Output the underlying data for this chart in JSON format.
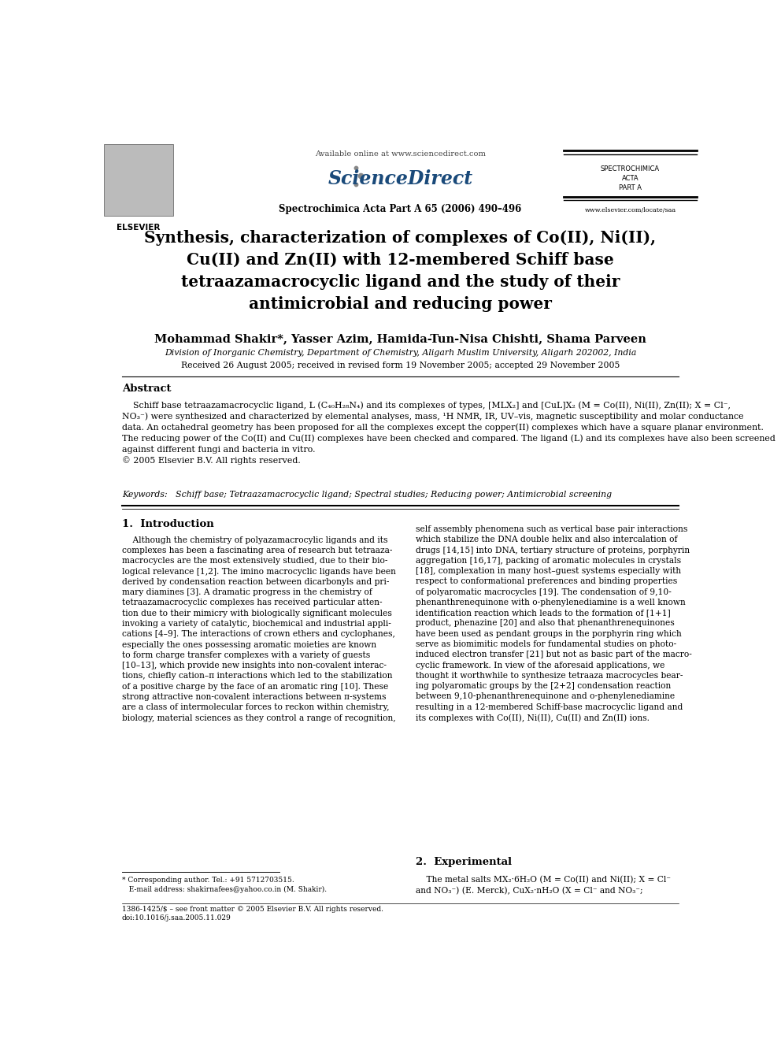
{
  "page_width": 9.92,
  "page_height": 13.23,
  "bg_color": "#ffffff",
  "header": {
    "available_online": "Available online at www.sciencedirect.com",
    "journal_name": "Spectrochimica Acta Part A 65 (2006) 490–496",
    "spectrochimica_lines": [
      "SPECTROCHIMICA",
      "ACTA",
      "PART A"
    ],
    "website": "www.elsevier.com/locate/saa"
  },
  "title": "Synthesis, characterization of complexes of Co(II), Ni(II),\nCu(II) and Zn(II) with 12-membered Schiff base\ntetraazamacrocyclic ligand and the study of their\nantimicrobial and reducing power",
  "authors": "Mohammad Shakir*, Yasser Azim, Hamida-Tun-Nisa Chishti, Shama Parveen",
  "affiliation": "Division of Inorganic Chemistry, Department of Chemistry, Aligarh Muslim University, Aligarh 202002, India",
  "received": "Received 26 August 2005; received in revised form 19 November 2005; accepted 29 November 2005",
  "abstract_title": "Abstract",
  "abstract_text": "    Schiff base tetraazamacrocyclic ligand, L (C₄₀H₂₈N₄) and its complexes of types, [MLX₂] and [CuL]X₂ (M = Co(II), Ni(II), Zn(II); X = Cl⁻,\nNO₃⁻) were synthesized and characterized by elemental analyses, mass, ¹H NMR, IR, UV–vis, magnetic susceptibility and molar conductance\ndata. An octahedral geometry has been proposed for all the complexes except the copper(II) complexes which have a square planar environment.\nThe reducing power of the Co(II) and Cu(II) complexes have been checked and compared. The ligand (L) and its complexes have also been screened\nagainst different fungi and bacteria in vitro.\n© 2005 Elsevier B.V. All rights reserved.",
  "keywords": "Keywords:   Schiff base; Tetraazamacrocyclic ligand; Spectral studies; Reducing power; Antimicrobial screening",
  "section1_title": "1.  Introduction",
  "section1_col1": "    Although the chemistry of polyazamacrocylic ligands and its\ncomplexes has been a fascinating area of research but tetraaza-\nmacrocycles are the most extensively studied, due to their bio-\nlogical relevance [1,2]. The imino macrocyclic ligands have been\nderived by condensation reaction between dicarbonyls and pri-\nmary diamines [3]. A dramatic progress in the chemistry of\ntetraazamacrocyclic complexes has received particular atten-\ntion due to their mimicry with biologically significant molecules\ninvoking a variety of catalytic, biochemical and industrial appli-\ncations [4–9]. The interactions of crown ethers and cyclophanes,\nespecially the ones possessing aromatic moieties are known\nto form charge transfer complexes with a variety of guests\n[10–13], which provide new insights into non-covalent interac-\ntions, chiefly cation–π interactions which led to the stabilization\nof a positive charge by the face of an aromatic ring [10]. These\nstrong attractive non-covalent interactions between π-systems\nare a class of intermolecular forces to reckon within chemistry,\nbiology, material sciences as they control a range of recognition,",
  "section1_col2": "self assembly phenomena such as vertical base pair interactions\nwhich stabilize the DNA double helix and also intercalation of\ndrugs [14,15] into DNA, tertiary structure of proteins, porphyrin\naggregation [16,17], packing of aromatic molecules in crystals\n[18], complexation in many host–guest systems especially with\nrespect to conformational preferences and binding properties\nof polyaromatic macrocycles [19]. The condensation of 9,10-\nphenanthrenequinone with o-phenylenediamine is a well known\nidentification reaction which leads to the formation of [1+1]\nproduct, phenazine [20] and also that phenanthrenequinones\nhave been used as pendant groups in the porphyrin ring which\nserve as biomimitic models for fundamental studies on photo-\ninduced electron transfer [21] but not as basic part of the macro-\ncyclic framework. In view of the aforesaid applications, we\nthought it worthwhile to synthesize tetraaza macrocycles bear-\ning polyaromatic groups by the [2+2] condensation reaction\nbetween 9,10-phenanthrenequinone and o-phenylenediamine\nresulting in a 12-membered Schiff-base macrocyclic ligand and\nits complexes with Co(II), Ni(II), Cu(II) and Zn(II) ions.",
  "section2_title": "2.  Experimental",
  "section2_text": "    The metal salts MX₂·6H₂O (M = Co(II) and Ni(II); X = Cl⁻\nand NO₃⁻) (E. Merck), CuX₂·nH₂O (X = Cl⁻ and NO₃⁻;",
  "footnote1": "* Corresponding author. Tel.: +91 5712703515.",
  "footnote2": "   E-mail address: shakirnafees@yahoo.co.in (M. Shakir).",
  "footnote3": "1386-1425/$ – see front matter © 2005 Elsevier B.V. All rights reserved.",
  "footnote4": "doi:10.1016/j.saa.2005.11.029"
}
